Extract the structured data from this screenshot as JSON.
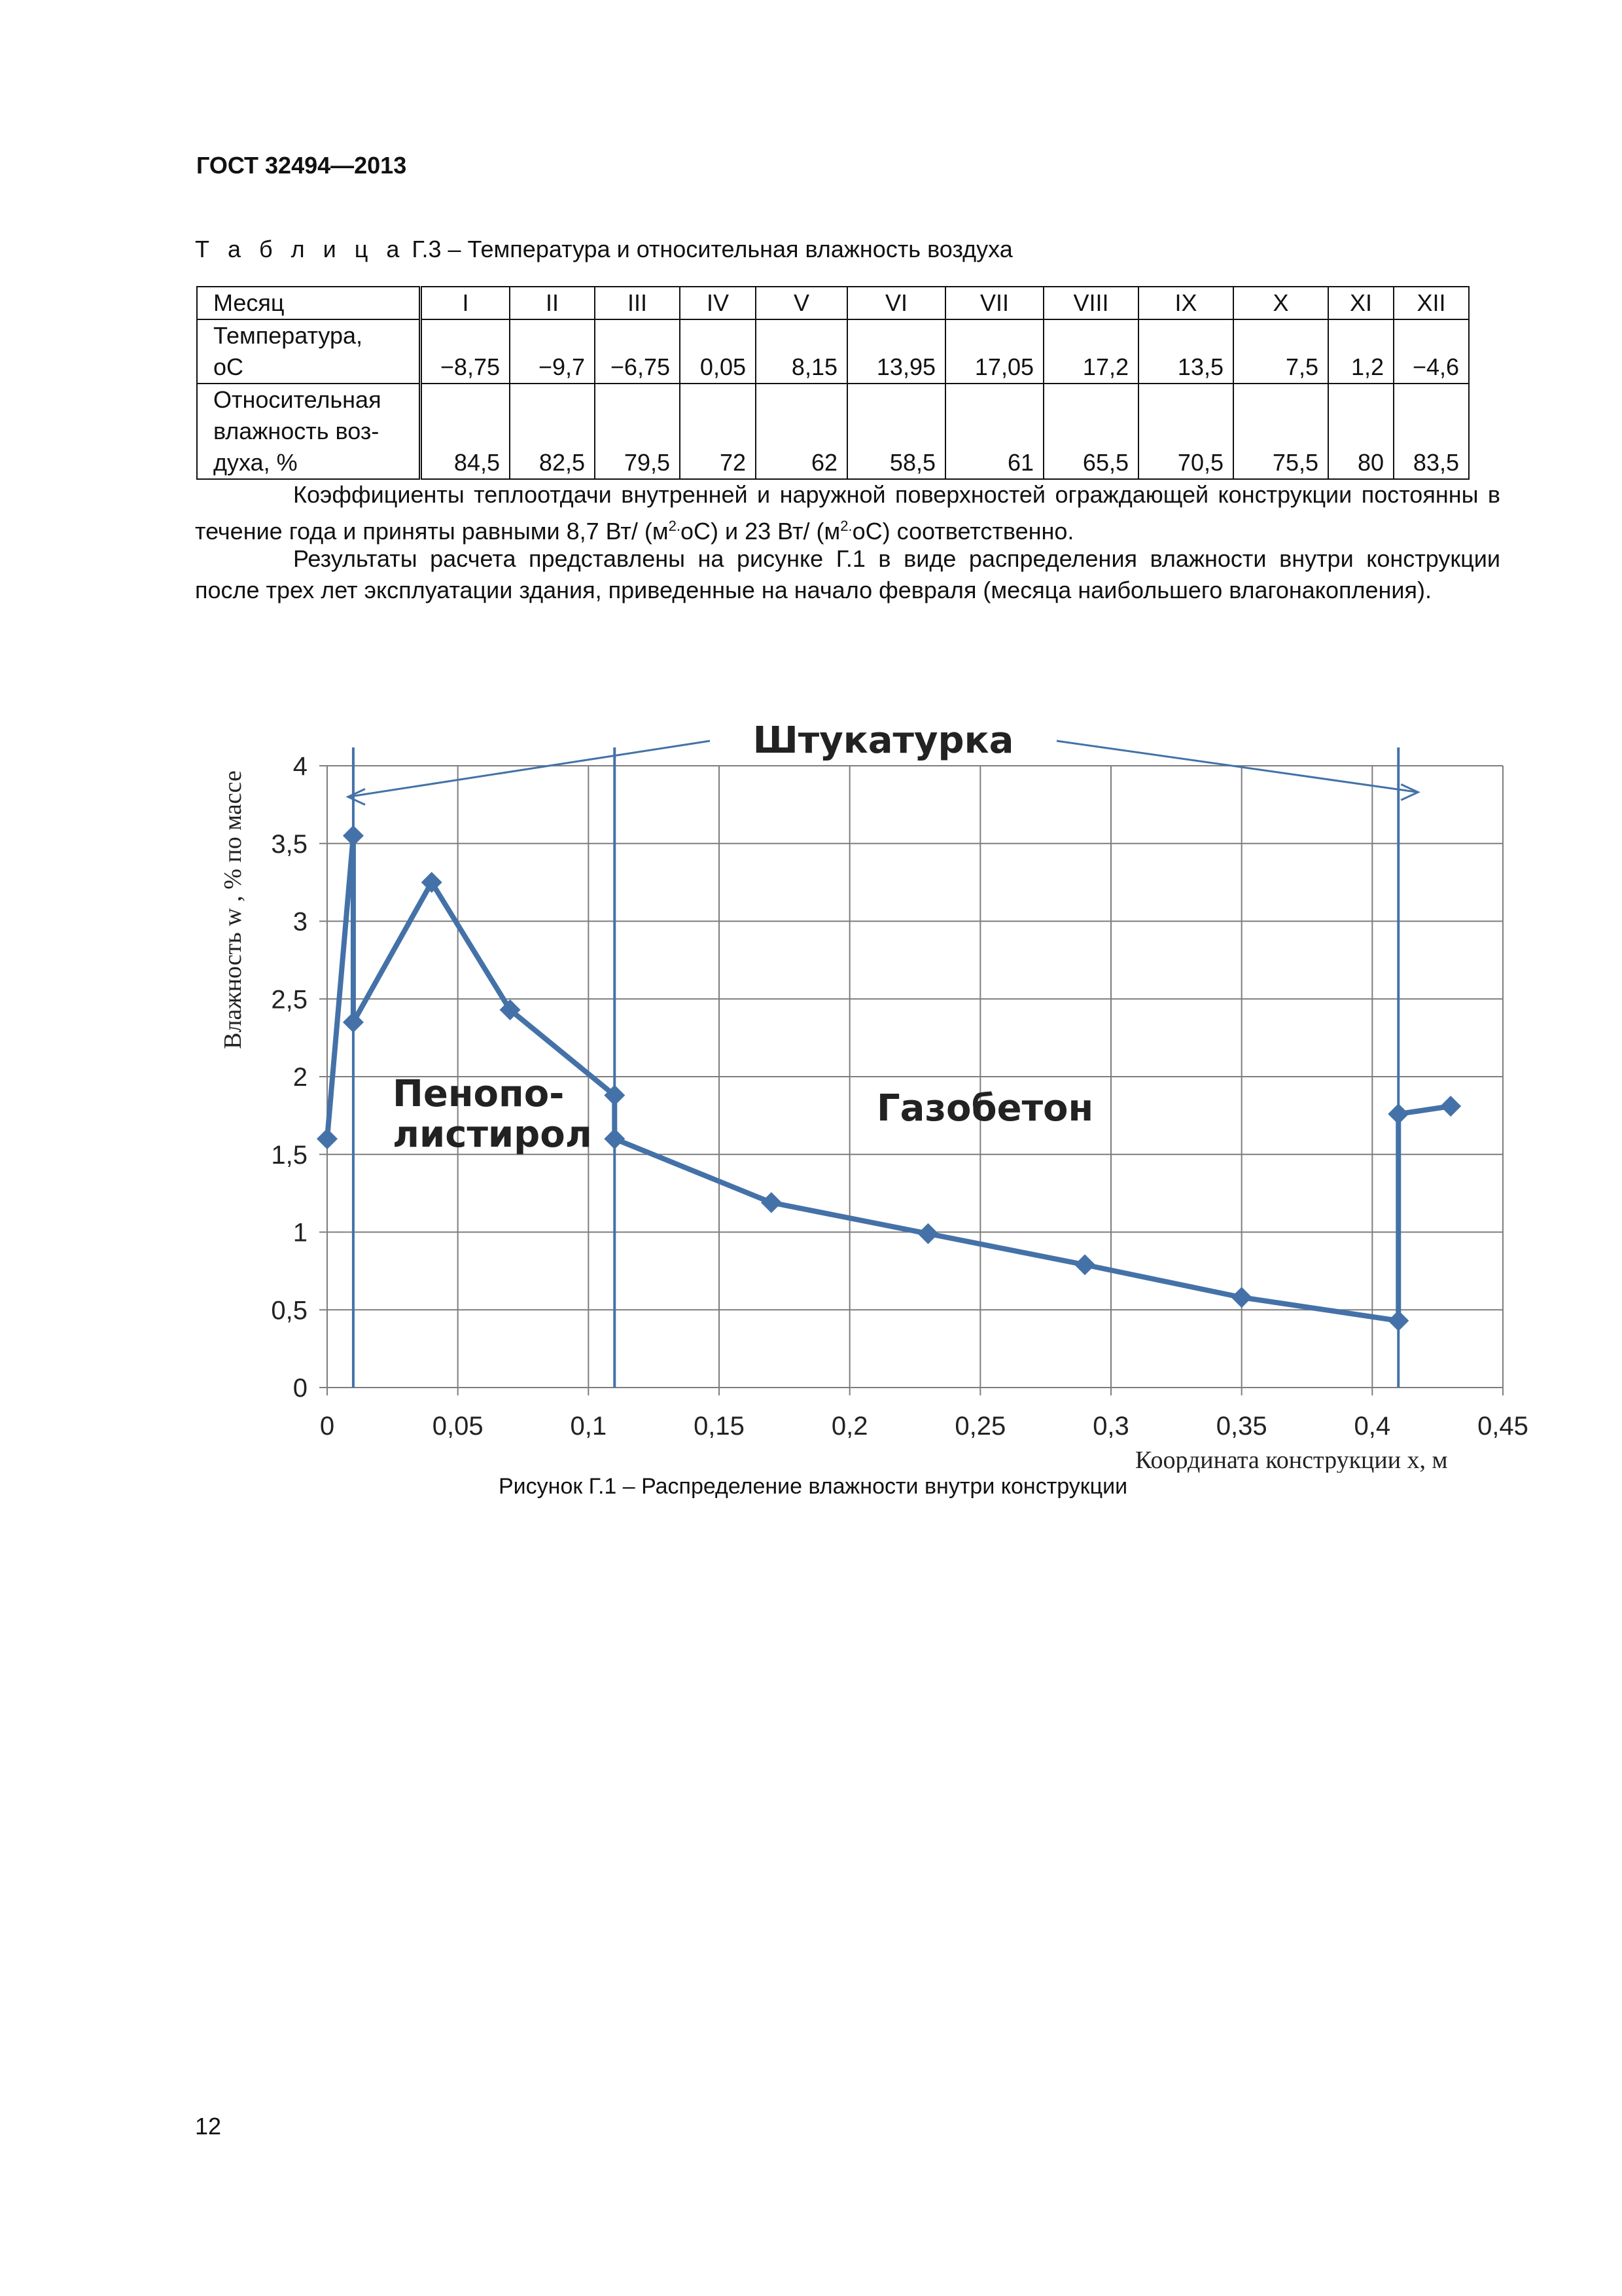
{
  "header": {
    "code": "ГОСТ 32494—2013"
  },
  "table": {
    "caption_prefix": "Т а б л и ц а",
    "caption_rest": " Г.3 – Температура и относительная влажность воздуха",
    "row_month_label": "Месяц",
    "row_temp_label_line1": "Температура,",
    "row_temp_label_line2": "oC",
    "row_hum_label_line1": "Относительная",
    "row_hum_label_line2": "влажность воз-",
    "row_hum_label_line3": "духа, %",
    "months": [
      "I",
      "II",
      "III",
      "IV",
      "V",
      "VI",
      "VII",
      "VIII",
      "IX",
      "X",
      "XI",
      "XII"
    ],
    "temperature": [
      "−8,75",
      "−9,7",
      "−6,75",
      "0,05",
      "8,15",
      "13,95",
      "17,05",
      "17,2",
      "13,5",
      "7,5",
      "1,2",
      "−4,6"
    ],
    "humidity": [
      "84,5",
      "82,5",
      "79,5",
      "72",
      "62",
      "58,5",
      "61",
      "65,5",
      "70,5",
      "75,5",
      "80",
      "83,5"
    ]
  },
  "paragraphs": {
    "p1_a": "Коэффициенты теплоотдачи внутренней и наружной поверхностей ограждающей конструкции постоянны в течение года и приняты равными 8,7 Вт/ (м",
    "p1_sup1": "2.",
    "p1_b": "oС) и 23 Вт/ (м",
    "p1_sup2": "2.",
    "p1_c": "oС) соответственно.",
    "p2": "Результаты расчета представлены на рисунке Г.1 в виде распределения влажности внутри конструкции после трех лет эксплуатации здания, приведенные на начало февраля (месяца наибольшего влагонакопления)."
  },
  "chart_data": {
    "type": "line",
    "xlabel": "Координата конструкции x, м",
    "ylabel": "Влажность w , % по массе",
    "xlim": [
      0,
      0.45
    ],
    "ylim": [
      0,
      4
    ],
    "x_ticks": [
      "0",
      "0,05",
      "0,1",
      "0,15",
      "0,2",
      "0,25",
      "0,3",
      "0,35",
      "0,4",
      "0,45"
    ],
    "y_ticks": [
      "0",
      "0,5",
      "1",
      "1,5",
      "2",
      "2,5",
      "3",
      "3,5",
      "4"
    ],
    "grid": true,
    "series": [
      {
        "x": [
          0,
          0.01,
          0.01,
          0.04,
          0.07,
          0.11,
          0.11,
          0.17,
          0.23,
          0.29,
          0.35,
          0.41,
          0.41,
          0.43
        ],
        "y": [
          1.6,
          3.55,
          2.35,
          3.25,
          2.43,
          1.88,
          1.6,
          1.19,
          0.99,
          0.79,
          0.58,
          0.43,
          1.76,
          1.81
        ]
      }
    ],
    "annotations": {
      "plaster": "Штукатурка",
      "foam_line1": "Пенопо-",
      "foam_line2": "листирол",
      "aerated": "Газобетон"
    },
    "line_color": "#4472a8"
  },
  "figure_caption": "Рисунок Г.1 – Распределение влажности внутри конструкции",
  "page_number": "12"
}
